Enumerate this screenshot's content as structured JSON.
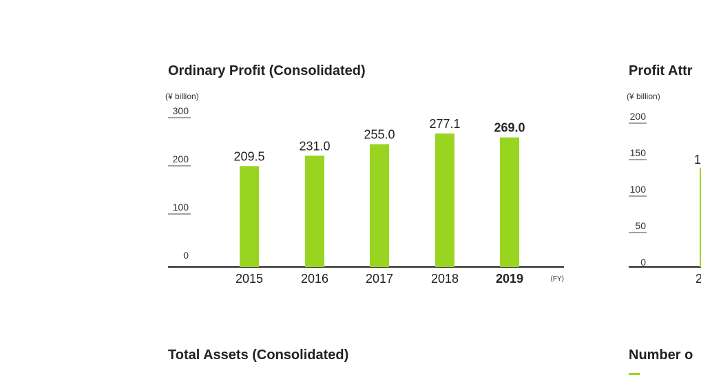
{
  "charts": [
    {
      "title": "Ordinary Profit (Consolidated)",
      "unit": "(¥ billion)",
      "x_suffix": "(FY)"
    },
    {
      "title": "Profit Attr",
      "unit": "(¥ billion)"
    }
  ],
  "lower_titles": [
    "Total Assets (Consolidated)",
    "Number o"
  ],
  "colors": {
    "bar": "#99d420",
    "axis": "#222222"
  },
  "chart_data": [
    {
      "type": "bar",
      "title": "Ordinary Profit (Consolidated)",
      "ylabel": "(¥ billion)",
      "xlabel": "(FY)",
      "categories": [
        "2015",
        "2016",
        "2017",
        "2018",
        "2019"
      ],
      "values": [
        209.5,
        231.0,
        255.0,
        277.1,
        269.0
      ],
      "labels": [
        "209.5",
        "231.0",
        "255.0",
        "277.1",
        "269.0"
      ],
      "highlight": "2019",
      "yticks": [
        0,
        100,
        200,
        300
      ],
      "ylim": [
        0,
        300
      ]
    },
    {
      "type": "bar",
      "title": "Profit Attr",
      "ylabel": "(¥ billion)",
      "yticks": [
        0,
        50,
        100,
        150,
        200
      ],
      "ylim": [
        0,
        200
      ],
      "partial_category": "2",
      "partial_label": "1",
      "partial_value": 136
    }
  ]
}
